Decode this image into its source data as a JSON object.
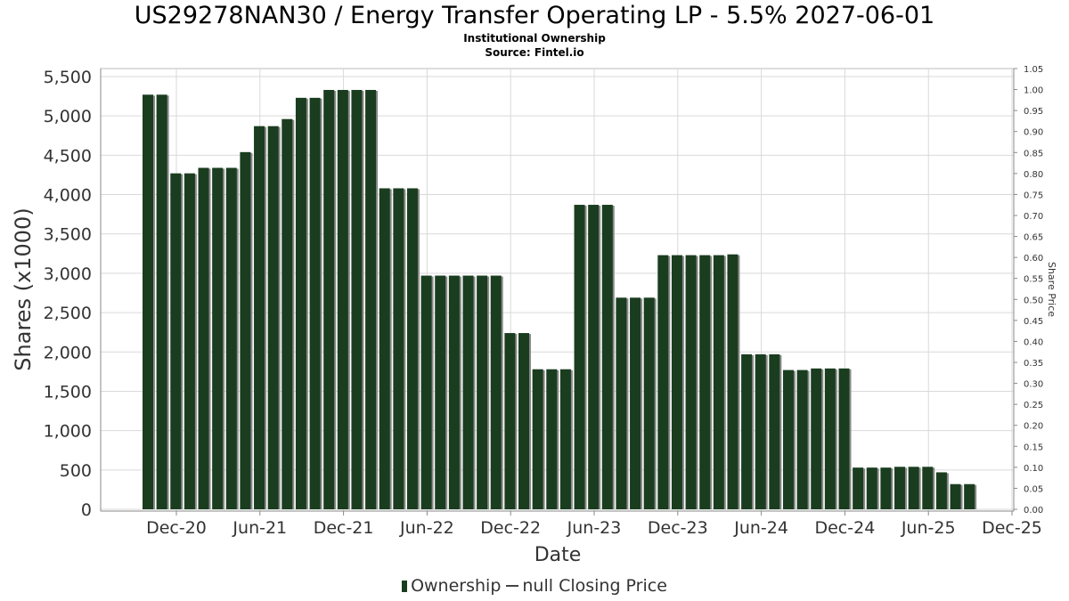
{
  "header": {
    "title": "US29278NAN30 / Energy Transfer Operating LP - 5.5% 2027-06-01",
    "subtitle": "Institutional Ownership",
    "source": "Source: Fintel.io"
  },
  "legend": {
    "ownership_label": "Ownership",
    "price_label": "null Closing Price"
  },
  "colors": {
    "bar": "#1a3d1f",
    "bar_shadow": "#8a8a8a",
    "grid": "#d9d9d9",
    "axis_text": "#333333"
  },
  "chart_data": {
    "type": "bar",
    "xlabel": "Date",
    "ylabel": "Shares (x1000)",
    "y2label": "Share Price",
    "ylim": [
      0,
      5600
    ],
    "y2lim": [
      0,
      1.05
    ],
    "yticks": [
      0,
      500,
      1000,
      1500,
      2000,
      2500,
      3000,
      3500,
      4000,
      4500,
      5000,
      5500
    ],
    "ytick_labels": [
      "0",
      "500",
      "1,000",
      "1,500",
      "2,000",
      "2,500",
      "3,000",
      "3,500",
      "4,000",
      "4,500",
      "5,000",
      "5,500"
    ],
    "y2ticks": [
      "0.00",
      "0.05",
      "0.10",
      "0.15",
      "0.20",
      "0.25",
      "0.30",
      "0.35",
      "0.40",
      "0.45",
      "0.50",
      "0.55",
      "0.60",
      "0.65",
      "0.70",
      "0.75",
      "0.80",
      "0.85",
      "0.90",
      "0.95",
      "1.00",
      "1.05"
    ],
    "xticks": [
      "Dec-20",
      "Jun-21",
      "Dec-21",
      "Jun-22",
      "Dec-22",
      "Jun-23",
      "Dec-23",
      "Jun-24",
      "Dec-24",
      "Jun-25",
      "Dec-25"
    ],
    "grid": true,
    "legend_position": "bottom",
    "series": [
      {
        "name": "Ownership",
        "values": [
          5270,
          5270,
          4270,
          4270,
          4340,
          4340,
          4340,
          4540,
          4870,
          4870,
          4960,
          5230,
          5230,
          5330,
          5330,
          5330,
          5330,
          4080,
          4080,
          4080,
          2970,
          2970,
          2970,
          2970,
          2970,
          2970,
          2240,
          2240,
          1780,
          1780,
          1780,
          3870,
          3870,
          3870,
          2690,
          2690,
          2690,
          3230,
          3230,
          3230,
          3230,
          3230,
          3240,
          1970,
          1970,
          1970,
          1770,
          1770,
          1790,
          1790,
          1790,
          530,
          530,
          530,
          540,
          540,
          540,
          470,
          320,
          320
        ]
      }
    ]
  }
}
